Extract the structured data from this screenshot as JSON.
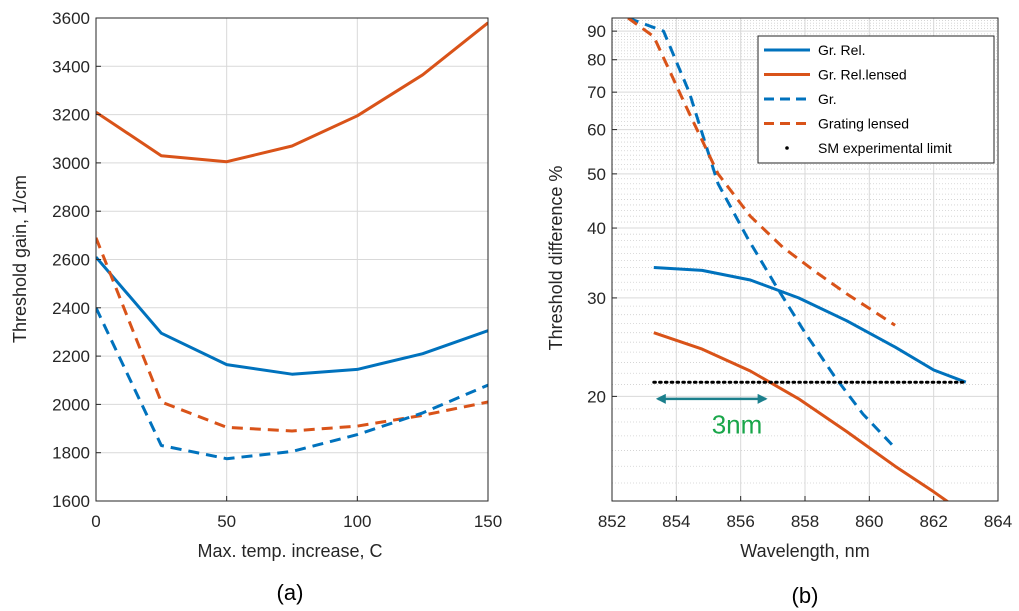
{
  "colors": {
    "blue": "#0072BD",
    "orange": "#D95319",
    "black": "#000000",
    "annotation_green": "#19a64a",
    "arrow_teal": "#1b7f8c"
  },
  "chart_data": [
    {
      "type": "line",
      "caption": "(a)",
      "xlabel": "Max. temp. increase, C",
      "ylabel": "Threshold gain, 1/cm",
      "xlim": [
        0,
        150
      ],
      "ylim": [
        1600,
        3600
      ],
      "xticks": [
        0,
        50,
        100,
        150
      ],
      "yticks": [
        1600,
        1800,
        2000,
        2200,
        2400,
        2600,
        2800,
        3000,
        3200,
        3400,
        3600
      ],
      "grid": true,
      "series": [
        {
          "color": "orange",
          "style": "solid",
          "x": [
            0,
            25,
            50,
            75,
            100,
            125,
            150
          ],
          "y": [
            3210,
            3030,
            3005,
            3070,
            3195,
            3365,
            3580
          ]
        },
        {
          "color": "blue",
          "style": "solid",
          "x": [
            0,
            25,
            50,
            75,
            100,
            125,
            150
          ],
          "y": [
            2610,
            2295,
            2165,
            2125,
            2145,
            2210,
            2305
          ]
        },
        {
          "color": "orange",
          "style": "dashed",
          "x": [
            0,
            25,
            50,
            75,
            100,
            125,
            150
          ],
          "y": [
            2690,
            2010,
            1905,
            1890,
            1910,
            1955,
            2010
          ]
        },
        {
          "color": "blue",
          "style": "dashed",
          "x": [
            0,
            25,
            50,
            75,
            100,
            125,
            150
          ],
          "y": [
            2400,
            1830,
            1775,
            1805,
            1875,
            1965,
            2080
          ]
        }
      ]
    },
    {
      "type": "line",
      "caption": "(b)",
      "xlabel": "Wavelength, nm",
      "ylabel": "Threshold  difference %",
      "xlim": [
        852,
        864
      ],
      "ylim": [
        13,
        95
      ],
      "yscale": "log",
      "xticks": [
        852,
        854,
        856,
        858,
        860,
        862,
        864
      ],
      "yticks": [
        20,
        30,
        40,
        50,
        60,
        70,
        80,
        90
      ],
      "grid": true,
      "legend_position": "top-right",
      "series": [
        {
          "name": "Gr. Rel.",
          "color": "blue",
          "style": "solid",
          "x": [
            853.3,
            854.8,
            856.3,
            857.8,
            859.3,
            860.8,
            862.0,
            863.0
          ],
          "y": [
            34,
            33.6,
            32.3,
            30.0,
            27.3,
            24.5,
            22.3,
            21.2
          ]
        },
        {
          "name": "Gr. Rel.lensed",
          "color": "orange",
          "style": "solid",
          "x": [
            853.3,
            854.8,
            856.3,
            857.8,
            859.3,
            860.8,
            862.0,
            863.0
          ],
          "y": [
            26.0,
            24.3,
            22.2,
            19.8,
            17.3,
            15.0,
            13.5,
            12.3
          ]
        },
        {
          "name": "Gr.",
          "color": "blue",
          "style": "dashed",
          "x": [
            852.5,
            853.6,
            854.4,
            855.3,
            856.2,
            857.1,
            858.0,
            858.9,
            859.8,
            860.7
          ],
          "y": [
            95,
            90,
            70,
            48,
            38.5,
            31.5,
            26.0,
            21.8,
            18.6,
            16.4
          ]
        },
        {
          "name": "Grating lensed",
          "color": "orange",
          "style": "dashed",
          "x": [
            852.5,
            853.3,
            854.3,
            855.3,
            856.3,
            857.3,
            858.3,
            859.3,
            860.3,
            860.8
          ],
          "y": [
            95,
            88,
            66,
            50,
            42,
            37,
            33.5,
            30.5,
            28.0,
            26.8
          ]
        },
        {
          "name": "SM experimental limit",
          "color": "black",
          "style": "dotted",
          "x": [
            853.3,
            863.0
          ],
          "y": [
            21.2,
            21.2
          ]
        }
      ],
      "annotations": [
        {
          "text": "3nm",
          "color": "annotation_green",
          "x": 855.1,
          "y": 17.8
        },
        {
          "arrow_from": 853.3,
          "arrow_to": 856.9,
          "y": 19.8,
          "color": "arrow_teal"
        }
      ]
    }
  ]
}
